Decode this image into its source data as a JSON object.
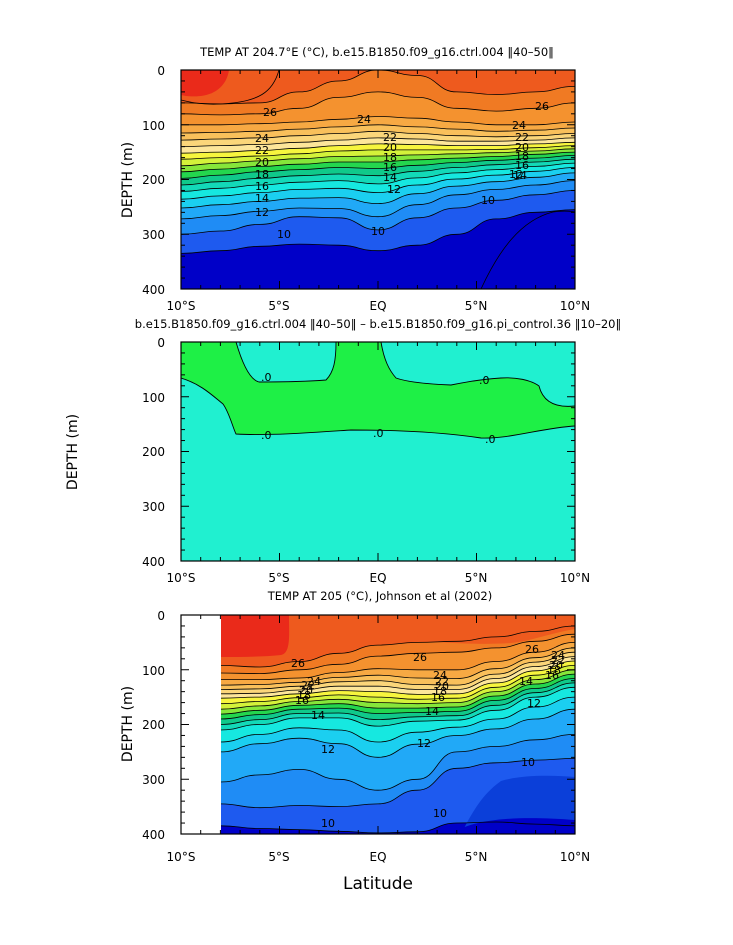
{
  "figure": {
    "xlabel": "Latitude"
  },
  "colors": {
    "t10m": "#0b3fd9",
    "t9": "#0000c8",
    "t10": "#1e5aef",
    "t11": "#1f8cf5",
    "t12": "#21a9f7",
    "t13": "#1bcff0",
    "t14": "#16e8e0",
    "t15": "#13d9b8",
    "t16": "#10c98a",
    "t17": "#24d64e",
    "t18": "#86e63a",
    "t19": "#d4f23a",
    "t20": "#f7f53e",
    "t21": "#fde69a",
    "t22": "#fbd67a",
    "t23": "#f9c05b",
    "t24": "#f7a943",
    "t25": "#f4922f",
    "t26": "#f07a23",
    "t27": "#ee5a1e",
    "t28": "#ea2a1a",
    "diff_zero": "#20f0d0",
    "diff_pos": "#1ef046"
  },
  "chart_data": [
    {
      "type": "contour",
      "title": "TEMP AT 204.7°E (°C), b.e15.B1850.f09_g16.ctrl.004 ‖40–50‖",
      "ylabel": "DEPTH (m)",
      "xlim": [
        -10,
        10
      ],
      "ylim": [
        400,
        0
      ],
      "x_ticks": [
        "10°S",
        "5°S",
        "EQ",
        "5°N",
        "10°N"
      ],
      "y_ticks": [
        "0",
        "100",
        "200",
        "300",
        "400"
      ],
      "contour_labels": [
        "26",
        "24",
        "24",
        "24",
        "22",
        "22",
        "22",
        "20",
        "20",
        "20",
        "18",
        "18",
        "18",
        "16",
        "16",
        "16",
        "14",
        "14",
        "14",
        "12",
        "12",
        "12",
        "10",
        "10",
        "10",
        "26"
      ],
      "levels": [
        {
          "value": 26,
          "depth": [
            60,
            62,
            60,
            40,
            20,
            0,
            10,
            40,
            45,
            40,
            30
          ]
        },
        {
          "value": 25,
          "depth": [
            80,
            82,
            80,
            70,
            50,
            40,
            50,
            70,
            75,
            70,
            60
          ]
        },
        {
          "value": 24,
          "depth": [
            100,
            100,
            98,
            95,
            90,
            85,
            88,
            95,
            100,
            100,
            95
          ]
        },
        {
          "value": 23,
          "depth": [
            115,
            114,
            112,
            108,
            104,
            100,
            104,
            108,
            112,
            110,
            106
          ]
        },
        {
          "value": 22,
          "depth": [
            128,
            126,
            124,
            120,
            116,
            112,
            116,
            120,
            122,
            120,
            116
          ]
        },
        {
          "value": 21,
          "depth": [
            140,
            138,
            136,
            132,
            128,
            124,
            126,
            130,
            130,
            128,
            124
          ]
        },
        {
          "value": 20,
          "depth": [
            152,
            150,
            147,
            143,
            138,
            135,
            136,
            138,
            138,
            135,
            132
          ]
        },
        {
          "value": 19,
          "depth": [
            163,
            160,
            157,
            153,
            148,
            146,
            146,
            146,
            145,
            142,
            138
          ]
        },
        {
          "value": 18,
          "depth": [
            175,
            170,
            166,
            162,
            158,
            157,
            155,
            153,
            151,
            148,
            144
          ]
        },
        {
          "value": 17,
          "depth": [
            186,
            181,
            176,
            172,
            168,
            168,
            164,
            161,
            158,
            154,
            150
          ]
        },
        {
          "value": 16,
          "depth": [
            198,
            192,
            186,
            182,
            178,
            180,
            174,
            169,
            165,
            161,
            156
          ]
        },
        {
          "value": 15,
          "depth": [
            210,
            204,
            198,
            193,
            190,
            193,
            185,
            178,
            173,
            168,
            163
          ]
        },
        {
          "value": 14,
          "depth": [
            222,
            216,
            210,
            205,
            202,
            208,
            197,
            188,
            182,
            176,
            170
          ]
        },
        {
          "value": 13,
          "depth": [
            236,
            230,
            224,
            218,
            216,
            224,
            210,
            199,
            192,
            185,
            178
          ]
        },
        {
          "value": 12,
          "depth": [
            252,
            246,
            240,
            234,
            233,
            244,
            226,
            212,
            204,
            196,
            188
          ]
        },
        {
          "value": 11,
          "depth": [
            272,
            266,
            258,
            252,
            253,
            268,
            246,
            228,
            218,
            210,
            202
          ]
        },
        {
          "value": 10,
          "depth": [
            300,
            294,
            282,
            268,
            270,
            292,
            270,
            252,
            238,
            228,
            220
          ]
        },
        {
          "value": 9,
          "depth": [
            335,
            330,
            322,
            318,
            320,
            330,
            320,
            300,
            272,
            260,
            255
          ]
        }
      ]
    },
    {
      "type": "contour",
      "title": "b.e15.B1850.f09_g16.ctrl.004 ‖40–50‖ – b.e15.B1850.f09_g16.pi_control.36 ‖10–20‖",
      "ylabel": "DEPTH (m)",
      "xlim": [
        -10,
        10
      ],
      "ylim": [
        400,
        0
      ],
      "x_ticks": [
        "10°S",
        "5°S",
        "EQ",
        "5°N",
        "10°N"
      ],
      "y_ticks": [
        "0",
        "100",
        "200",
        "300",
        "400"
      ],
      "contour_labels": [
        ".0",
        ".0",
        ".0",
        ".0",
        ".0",
        ".0"
      ]
    },
    {
      "type": "contour",
      "title": "TEMP AT 205 (°C), Johnson et al (2002)",
      "ylabel": "DEPTH (m)",
      "xlim": [
        -10,
        10
      ],
      "ylim": [
        400,
        0
      ],
      "x_ticks": [
        "10°S",
        "5°S",
        "EQ",
        "5°N",
        "10°N"
      ],
      "y_ticks": [
        "0",
        "100",
        "200",
        "300",
        "400"
      ],
      "data_start_lat": -8,
      "contour_labels": [
        "26",
        "26",
        "26",
        "24",
        "24",
        "22",
        "22",
        "20",
        "20",
        "18",
        "18",
        "16",
        "16",
        "14",
        "14",
        "14",
        "12",
        "12",
        "12",
        "10",
        "10",
        "10",
        "24",
        "22",
        "20",
        "18",
        "16",
        "26",
        "24",
        "20",
        "18"
      ],
      "levels": [
        {
          "value": 26,
          "depth": [
            90,
            92,
            95,
            85,
            70,
            55,
            50,
            48,
            40,
            30,
            20
          ]
        },
        {
          "value": 25,
          "depth": [
            105,
            106,
            107,
            100,
            90,
            75,
            70,
            68,
            60,
            48,
            35
          ]
        },
        {
          "value": 24,
          "depth": [
            118,
            118,
            118,
            115,
            105,
            98,
            100,
            100,
            85,
            68,
            50
          ]
        },
        {
          "value": 23,
          "depth": [
            128,
            128,
            127,
            123,
            114,
            110,
            115,
            116,
            98,
            78,
            60
          ]
        },
        {
          "value": 22,
          "depth": [
            136,
            136,
            135,
            130,
            122,
            120,
            127,
            128,
            108,
            86,
            68
          ]
        },
        {
          "value": 21,
          "depth": [
            144,
            144,
            143,
            137,
            130,
            130,
            136,
            136,
            116,
            94,
            76
          ]
        },
        {
          "value": 20,
          "depth": [
            152,
            152,
            150,
            144,
            138,
            140,
            145,
            144,
            124,
            102,
            84
          ]
        },
        {
          "value": 19,
          "depth": [
            162,
            162,
            158,
            151,
            146,
            150,
            154,
            152,
            132,
            110,
            92
          ]
        },
        {
          "value": 18,
          "depth": [
            172,
            172,
            166,
            158,
            154,
            160,
            162,
            160,
            140,
            118,
            100
          ]
        },
        {
          "value": 17,
          "depth": [
            182,
            181,
            174,
            165,
            162,
            170,
            170,
            168,
            148,
            126,
            108
          ]
        },
        {
          "value": 16,
          "depth": [
            192,
            190,
            182,
            172,
            170,
            180,
            178,
            176,
            156,
            134,
            116
          ]
        },
        {
          "value": 15,
          "depth": [
            203,
            200,
            191,
            180,
            179,
            191,
            186,
            184,
            165,
            142,
            124
          ]
        },
        {
          "value": 14,
          "depth": [
            215,
            210,
            200,
            188,
            188,
            203,
            194,
            192,
            174,
            150,
            132
          ]
        },
        {
          "value": 13,
          "depth": [
            240,
            232,
            218,
            206,
            210,
            232,
            214,
            205,
            190,
            168,
            150
          ]
        },
        {
          "value": 12,
          "depth": [
            262,
            250,
            235,
            225,
            235,
            260,
            236,
            220,
            208,
            190,
            172
          ]
        },
        {
          "value": 11,
          "depth": [
            318,
            305,
            292,
            282,
            300,
            320,
            300,
            250,
            240,
            228,
            218
          ]
        },
        {
          "value": 10,
          "depth": [
            350,
            345,
            352,
            348,
            350,
            345,
            320,
            280,
            270,
            265,
            262
          ]
        },
        {
          "value": 9,
          "depth": [
            392,
            385,
            390,
            392,
            395,
            398,
            396,
            380,
            378,
            382,
            385
          ]
        }
      ]
    }
  ]
}
